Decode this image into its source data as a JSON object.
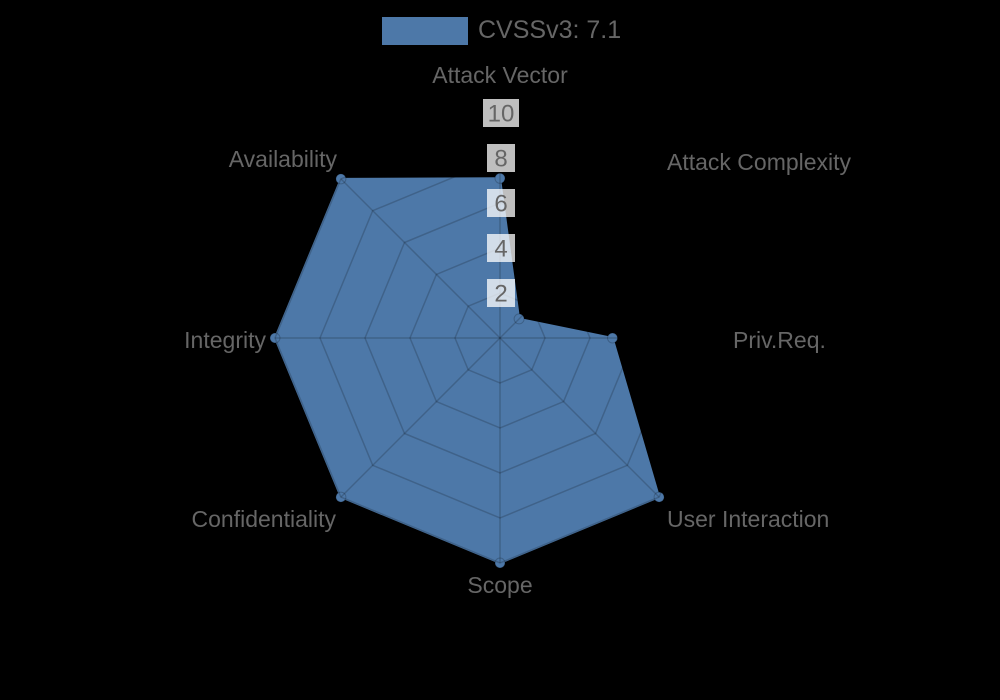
{
  "legend": {
    "label": "CVSSv3: 7.1",
    "swatch_color": "#4d78a8"
  },
  "chart_data": {
    "type": "radar",
    "title": "CVSSv3: 7.1",
    "axes": [
      "Attack Vector",
      "Attack Complexity",
      "Priv.Req.",
      "User Interaction",
      "Scope",
      "Confidentiality",
      "Integrity",
      "Availability"
    ],
    "series": [
      {
        "name": "CVSSv3: 7.1",
        "values": [
          7.1,
          1.2,
          5,
          10,
          10,
          10,
          10,
          10
        ]
      }
    ],
    "scale": {
      "min": 0,
      "max": 10,
      "ticks": [
        2,
        4,
        6,
        8,
        10
      ]
    },
    "legend_position": "top",
    "grid": "on",
    "colors": {
      "fill": "#4d78a8",
      "marker_stroke": "rgba(0,0,0,0.2)",
      "grid_line": "rgba(0,0,0,0.18)",
      "tick_text": "#666666",
      "tick_backdrop": "rgba(255,255,255,0.75)",
      "axis_label_text": "#666666",
      "background": "#000000"
    }
  }
}
